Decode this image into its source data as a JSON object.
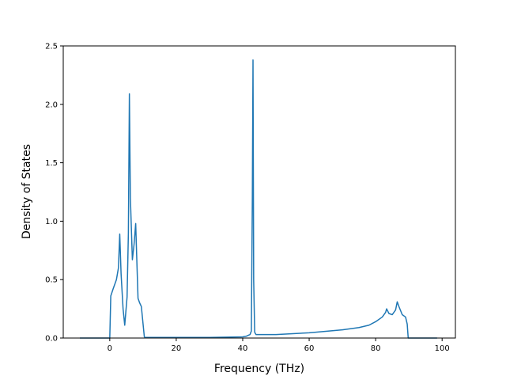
{
  "chart_data": {
    "type": "line",
    "title": "",
    "xlabel": "Frequency (THz)",
    "ylabel": "Density of States",
    "xlim": [
      -14,
      104
    ],
    "ylim": [
      0,
      2.5
    ],
    "xticks": [
      0,
      20,
      40,
      60,
      80,
      100
    ],
    "yticks": [
      0.0,
      0.5,
      1.0,
      1.5,
      2.0,
      2.5
    ],
    "xtick_labels": [
      "0",
      "20",
      "40",
      "60",
      "80",
      "100"
    ],
    "ytick_labels": [
      "0.0",
      "0.5",
      "1.0",
      "1.5",
      "2.0",
      "2.5"
    ],
    "grid": false,
    "legend": "none",
    "series": [
      {
        "color": "#1f77b4",
        "x": [
          -9,
          -0.5,
          0,
          0.3,
          1,
          2,
          2.6,
          3.0,
          3.4,
          4.0,
          4.5,
          5.2,
          5.6,
          5.9,
          6.2,
          6.8,
          7.3,
          7.8,
          8.1,
          8.5,
          9.0,
          9.5,
          10.4,
          10.8,
          11.2,
          20,
          30,
          40,
          41,
          42.2,
          42.6,
          42.9,
          43.1,
          43.3,
          43.6,
          44,
          45,
          50,
          60,
          70,
          75,
          78,
          80,
          82,
          83,
          83.3,
          84,
          85,
          86,
          86.5,
          87,
          88,
          89,
          89.5,
          89.8,
          91,
          98.5
        ],
        "y": [
          0,
          0,
          0,
          0.36,
          0.42,
          0.5,
          0.6,
          0.89,
          0.55,
          0.25,
          0.11,
          0.35,
          0.9,
          2.09,
          1.2,
          0.67,
          0.8,
          0.98,
          0.7,
          0.34,
          0.3,
          0.27,
          0.01,
          0.005,
          0.005,
          0.005,
          0.005,
          0.01,
          0.015,
          0.03,
          0.06,
          1.2,
          2.38,
          0.5,
          0.05,
          0.03,
          0.03,
          0.03,
          0.045,
          0.07,
          0.09,
          0.11,
          0.14,
          0.18,
          0.22,
          0.25,
          0.21,
          0.2,
          0.24,
          0.31,
          0.27,
          0.2,
          0.18,
          0.12,
          0.0,
          0.0,
          0.0
        ]
      }
    ]
  }
}
